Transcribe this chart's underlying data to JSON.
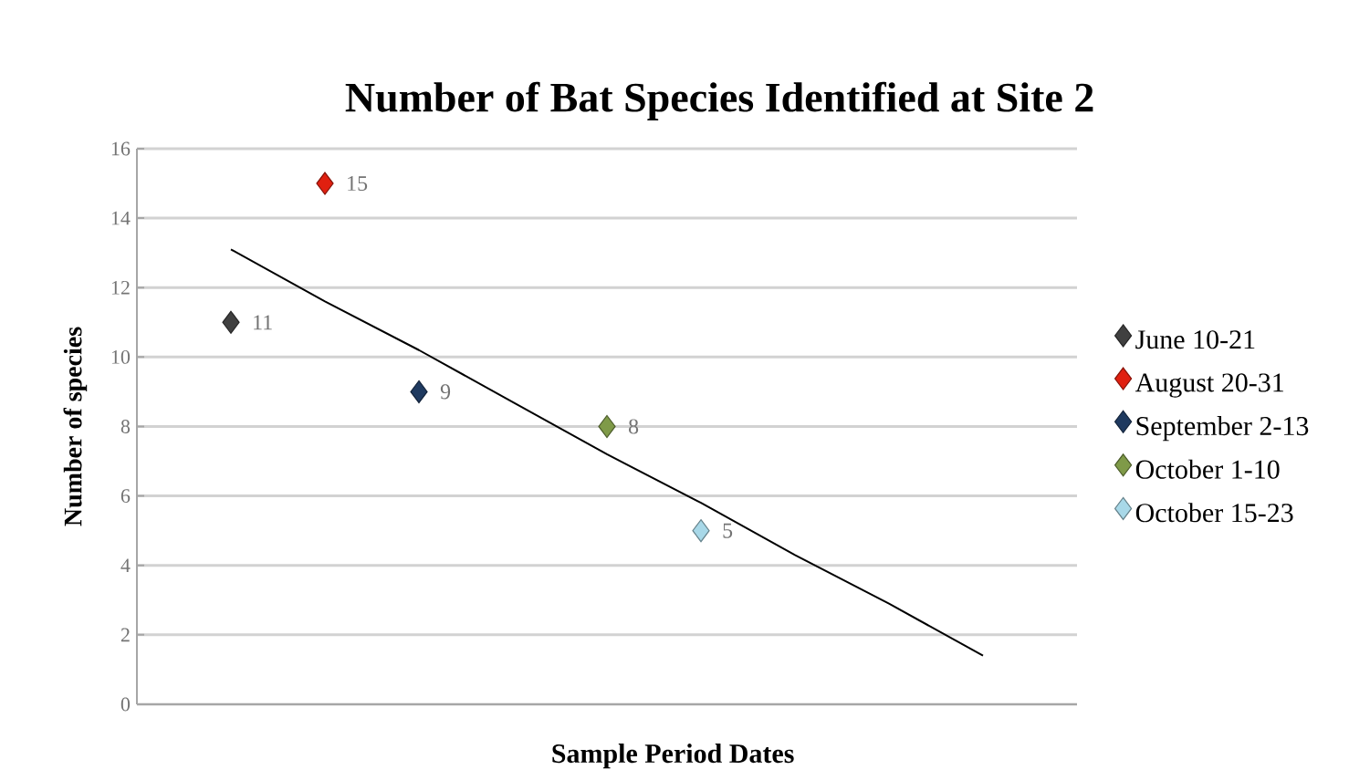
{
  "chart_data": {
    "type": "scatter",
    "title": "Number of Bat Species Identified at Site 2",
    "xlabel": "Sample Period Dates",
    "ylabel": "Number of species",
    "categories": [
      null,
      null,
      null,
      null,
      null,
      null,
      null,
      null,
      null
    ],
    "ylim": [
      0,
      16
    ],
    "yticks": [
      0,
      2,
      4,
      6,
      8,
      10,
      12,
      14,
      16
    ],
    "tick_labels": "y",
    "grid": "y",
    "legend": "right",
    "marker": "diamond",
    "series": [
      {
        "name": "June 10-21",
        "color": "#404040",
        "values": [
          11,
          null,
          null,
          null,
          null,
          null,
          null,
          null,
          null
        ],
        "value_labels": [
          "11",
          null,
          null,
          null,
          null,
          null,
          null,
          null,
          null
        ]
      },
      {
        "name": "August 20-31",
        "color": "#e02010",
        "values": [
          null,
          15,
          null,
          null,
          null,
          null,
          null,
          null,
          null
        ],
        "value_labels": [
          null,
          "15",
          null,
          null,
          null,
          null,
          null,
          null,
          null
        ]
      },
      {
        "name": "September 2-13",
        "color": "#1f3a60",
        "values": [
          null,
          null,
          9,
          null,
          null,
          null,
          null,
          null,
          null
        ],
        "value_labels": [
          null,
          null,
          "9",
          null,
          null,
          null,
          null,
          null,
          null
        ]
      },
      {
        "name": "October 1-10",
        "color": "#7f9a48",
        "values": [
          null,
          null,
          null,
          null,
          8,
          null,
          null,
          null,
          null
        ],
        "value_labels": [
          null,
          null,
          null,
          null,
          "8",
          null,
          null,
          null,
          null
        ]
      },
      {
        "name": "October 15-23",
        "color": "#a8d8e8",
        "values": [
          null,
          null,
          null,
          null,
          null,
          5,
          null,
          null,
          null
        ],
        "value_labels": [
          null,
          null,
          null,
          null,
          null,
          "5",
          null,
          null,
          null
        ]
      },
      {
        "type": "line",
        "color": "#000000",
        "marker": "none",
        "values": [
          13.1,
          11.6,
          10.2,
          8.7,
          7.2,
          5.8,
          4.3,
          2.9,
          1.4
        ]
      }
    ]
  }
}
